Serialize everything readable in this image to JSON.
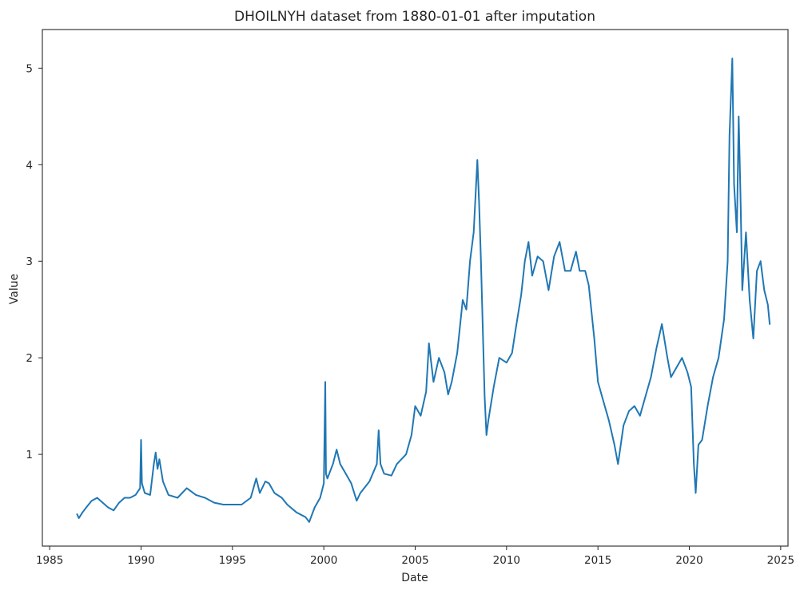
{
  "chart_data": {
    "type": "line",
    "title": "DHOILNYH dataset from 1880-01-01 after imputation",
    "xlabel": "Date",
    "ylabel": "Value",
    "x_axis_type": "date-years",
    "xlim": [
      1984.6,
      2025.4
    ],
    "ylim": [
      0.05,
      5.4
    ],
    "xticks": [
      1985,
      1990,
      1995,
      2000,
      2005,
      2010,
      2015,
      2020,
      2025
    ],
    "yticks": [
      1,
      2,
      3,
      4,
      5
    ],
    "grid": false,
    "legend": "none",
    "series_color": "#1f77b4",
    "series": [
      {
        "x": [
          1986.5,
          1986.6,
          1986.8,
          1987.0,
          1987.3,
          1987.6,
          1987.9,
          1988.2,
          1988.5,
          1988.8,
          1989.1,
          1989.4,
          1989.7,
          1989.95,
          1990.0,
          1990.05,
          1990.2,
          1990.5,
          1990.7,
          1990.8,
          1990.9,
          1991.0,
          1991.2,
          1991.5,
          1992.0,
          1992.5,
          1993.0,
          1993.5,
          1994.0,
          1994.5,
          1995.0,
          1995.5,
          1996.0,
          1996.3,
          1996.5,
          1996.8,
          1997.0,
          1997.3,
          1997.7,
          1998.0,
          1998.5,
          1999.0,
          1999.2,
          1999.5,
          1999.8,
          2000.0,
          2000.08,
          2000.12,
          2000.2,
          2000.5,
          2000.7,
          2000.9,
          2001.2,
          2001.5,
          2001.8,
          2002.0,
          2002.5,
          2002.9,
          2003.0,
          2003.1,
          2003.3,
          2003.7,
          2004.0,
          2004.5,
          2004.8,
          2005.0,
          2005.3,
          2005.6,
          2005.75,
          2006.0,
          2006.3,
          2006.6,
          2006.8,
          2007.0,
          2007.3,
          2007.6,
          2007.8,
          2008.0,
          2008.2,
          2008.4,
          2008.5,
          2008.6,
          2008.8,
          2008.9,
          2009.0,
          2009.3,
          2009.6,
          2010.0,
          2010.3,
          2010.5,
          2010.8,
          2011.0,
          2011.2,
          2011.4,
          2011.7,
          2012.0,
          2012.3,
          2012.6,
          2012.9,
          2013.2,
          2013.5,
          2013.8,
          2014.0,
          2014.3,
          2014.5,
          2014.8,
          2015.0,
          2015.3,
          2015.6,
          2015.9,
          2016.1,
          2016.4,
          2016.7,
          2017.0,
          2017.3,
          2017.6,
          2017.9,
          2018.2,
          2018.5,
          2018.8,
          2019.0,
          2019.3,
          2019.6,
          2019.9,
          2020.1,
          2020.25,
          2020.35,
          2020.5,
          2020.7,
          2021.0,
          2021.3,
          2021.6,
          2021.9,
          2022.1,
          2022.2,
          2022.35,
          2022.45,
          2022.6,
          2022.7,
          2022.8,
          2022.9,
          2023.1,
          2023.3,
          2023.5,
          2023.7,
          2023.9,
          2024.1,
          2024.3,
          2024.4
        ],
        "y": [
          0.38,
          0.34,
          0.4,
          0.45,
          0.52,
          0.55,
          0.5,
          0.45,
          0.42,
          0.5,
          0.55,
          0.55,
          0.58,
          0.65,
          1.15,
          0.7,
          0.6,
          0.58,
          0.9,
          1.02,
          0.85,
          0.95,
          0.72,
          0.58,
          0.55,
          0.65,
          0.58,
          0.55,
          0.5,
          0.48,
          0.48,
          0.48,
          0.55,
          0.75,
          0.6,
          0.72,
          0.7,
          0.6,
          0.55,
          0.48,
          0.4,
          0.35,
          0.3,
          0.45,
          0.55,
          0.7,
          1.75,
          0.8,
          0.75,
          0.9,
          1.05,
          0.9,
          0.8,
          0.7,
          0.52,
          0.6,
          0.72,
          0.9,
          1.25,
          0.9,
          0.8,
          0.78,
          0.9,
          1.0,
          1.2,
          1.5,
          1.4,
          1.65,
          2.15,
          1.75,
          2.0,
          1.85,
          1.62,
          1.75,
          2.05,
          2.6,
          2.5,
          3.0,
          3.3,
          4.05,
          3.6,
          3.0,
          1.6,
          1.2,
          1.35,
          1.7,
          2.0,
          1.95,
          2.05,
          2.3,
          2.65,
          3.0,
          3.2,
          2.85,
          3.05,
          3.0,
          2.7,
          3.05,
          3.2,
          2.9,
          2.9,
          3.1,
          2.9,
          2.9,
          2.75,
          2.2,
          1.75,
          1.55,
          1.35,
          1.1,
          0.9,
          1.3,
          1.45,
          1.5,
          1.4,
          1.6,
          1.8,
          2.1,
          2.35,
          2.0,
          1.8,
          1.9,
          2.0,
          1.85,
          1.7,
          0.9,
          0.6,
          1.1,
          1.15,
          1.5,
          1.8,
          2.0,
          2.4,
          3.0,
          4.3,
          5.1,
          3.8,
          3.3,
          4.5,
          3.7,
          2.7,
          3.3,
          2.6,
          2.2,
          2.9,
          3.0,
          2.7,
          2.55,
          2.35
        ]
      }
    ]
  }
}
